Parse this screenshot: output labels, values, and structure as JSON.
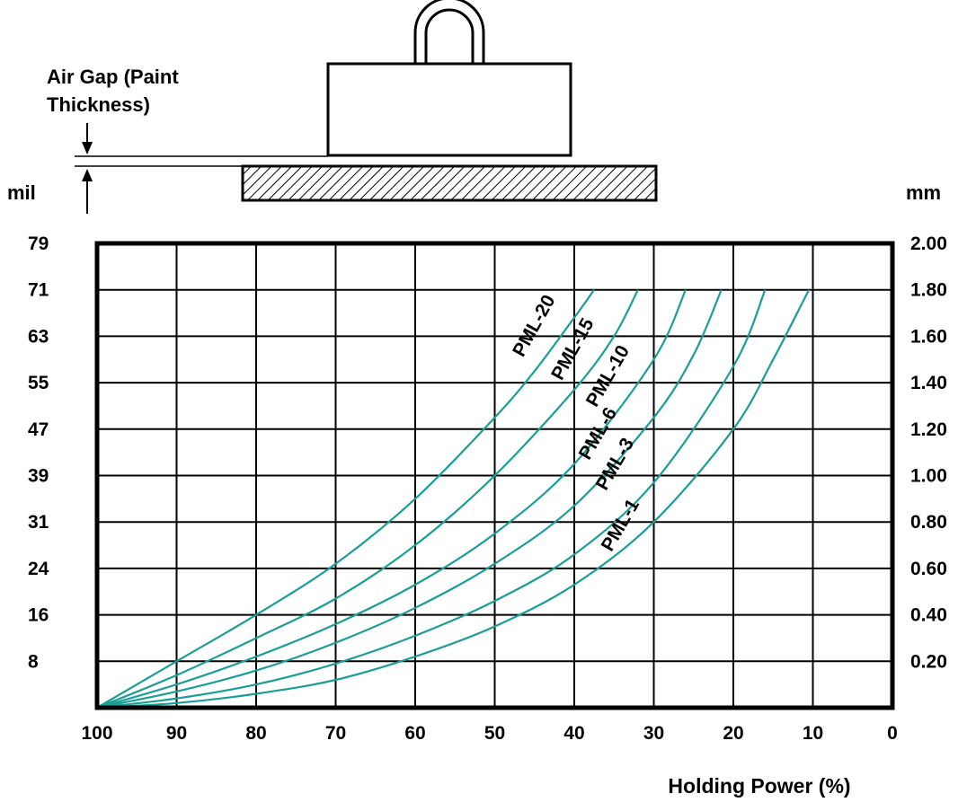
{
  "diagram": {
    "air_gap_line1": "Air Gap (Paint",
    "air_gap_line2": "Thickness)",
    "left_unit": "mil",
    "right_unit": "mm"
  },
  "chart_data": {
    "type": "line",
    "title": "",
    "xlabel": "Holding Power (%)",
    "ylabel_left": "mil",
    "ylabel_right": "mm",
    "xlim": [
      100,
      0
    ],
    "ylim": [
      0,
      2.0
    ],
    "x_ticks": [
      100,
      90,
      80,
      70,
      60,
      50,
      40,
      30,
      20,
      10,
      0
    ],
    "y_ticks_mm": [
      "0.20",
      "0.40",
      "0.60",
      "0.80",
      "1.00",
      "1.20",
      "1.40",
      "1.60",
      "1.80",
      "2.00"
    ],
    "y_ticks_mil": [
      "8",
      "16",
      "24",
      "31",
      "39",
      "47",
      "55",
      "63",
      "71",
      "79"
    ],
    "grid": true,
    "line_color": "#1a9e96",
    "series": [
      {
        "name": "PML-20",
        "x": [
          100,
          90,
          80,
          70,
          60,
          50,
          45,
          40,
          37.5
        ],
        "y": [
          0,
          0.2,
          0.4,
          0.62,
          0.9,
          1.25,
          1.45,
          1.68,
          1.8
        ]
      },
      {
        "name": "PML-15",
        "x": [
          100,
          90,
          80,
          70,
          60,
          50,
          40,
          35,
          32
        ],
        "y": [
          0,
          0.14,
          0.3,
          0.47,
          0.7,
          1.0,
          1.37,
          1.6,
          1.8
        ]
      },
      {
        "name": "PML-10",
        "x": [
          100,
          90,
          80,
          70,
          60,
          50,
          40,
          30,
          26
        ],
        "y": [
          0,
          0.1,
          0.22,
          0.36,
          0.53,
          0.75,
          1.05,
          1.5,
          1.8
        ]
      },
      {
        "name": "PML-6",
        "x": [
          100,
          90,
          80,
          70,
          60,
          50,
          40,
          30,
          25,
          21.5
        ],
        "y": [
          0,
          0.07,
          0.16,
          0.28,
          0.43,
          0.62,
          0.87,
          1.25,
          1.52,
          1.8
        ]
      },
      {
        "name": "PML-3",
        "x": [
          100,
          90,
          80,
          70,
          60,
          50,
          40,
          30,
          20,
          16
        ],
        "y": [
          0,
          0.04,
          0.1,
          0.19,
          0.31,
          0.46,
          0.66,
          0.97,
          1.47,
          1.8
        ]
      },
      {
        "name": "PML-1",
        "x": [
          100,
          90,
          80,
          70,
          60,
          50,
          40,
          30,
          20,
          15,
          10.5
        ],
        "y": [
          0,
          0.02,
          0.06,
          0.12,
          0.22,
          0.35,
          0.53,
          0.8,
          1.2,
          1.5,
          1.8
        ]
      }
    ]
  }
}
